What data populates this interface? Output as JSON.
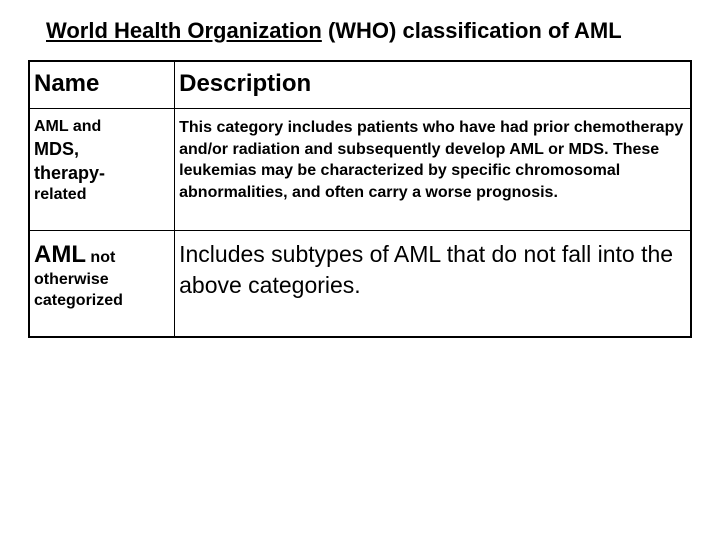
{
  "title": {
    "underlined": "World Health Organization",
    "rest": " (WHO) classification of AML"
  },
  "table": {
    "headers": {
      "name": "Name",
      "description": "Description"
    },
    "rows": [
      {
        "name_line1": "AML and",
        "name_line2": "MDS,",
        "name_line3": "therapy-",
        "name_line4": "related",
        "description": "This category includes patients who have had prior chemotherapy and/or radiation and subsequently develop AML or MDS. These leukemias may be characterized by specific chromosomal abnormalities, and often carry a worse prognosis."
      },
      {
        "name_big1": "AML",
        "name_small1": " not",
        "name_small2": "otherwise",
        "name_small3": "categorized",
        "description": "Includes subtypes of AML that do not fall into the above categories."
      }
    ]
  }
}
